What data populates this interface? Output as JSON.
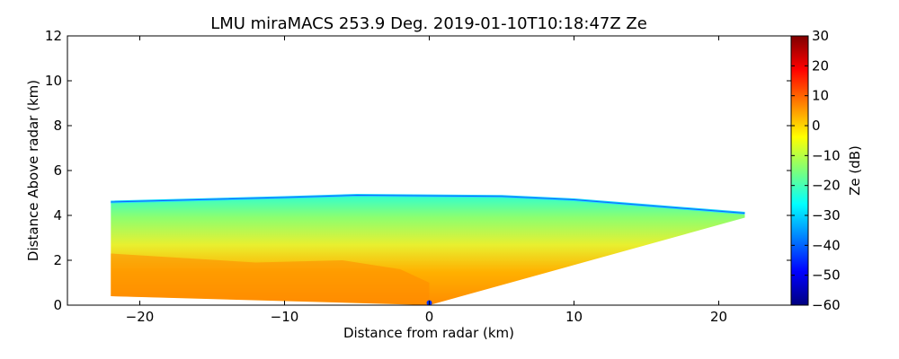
{
  "chart_data": {
    "type": "heatmap",
    "title": "LMU miraMACS 253.9 Deg. 2019-01-10T10:18:47Z  Ze",
    "xlabel": "Distance from radar (km)",
    "ylabel": "Distance Above radar  (km)",
    "xlim": [
      -25,
      25
    ],
    "ylim": [
      0,
      12
    ],
    "xticks": [
      -20,
      -10,
      0,
      10,
      20
    ],
    "yticks": [
      0,
      2,
      4,
      6,
      8,
      10,
      12
    ],
    "grid": false,
    "colorbar": {
      "label": "Ze (dB)",
      "range": [
        -60,
        30
      ],
      "ticks": [
        30,
        20,
        10,
        0,
        -10,
        -20,
        -30,
        -40,
        -50,
        -60
      ],
      "colormap": "jet"
    },
    "echo": {
      "left_edge_x": -22,
      "left_bottom": 0.4,
      "left_top": 4.6,
      "top_height_center": 4.9,
      "right_edge_x": 21.8,
      "right_top": 4.1,
      "right_bottom": 3.9,
      "origin": [
        0,
        0
      ],
      "typical_ze_db": {
        "near_surface_left": 8,
        "mid_layer": -2,
        "cloud_top": -25
      }
    }
  }
}
